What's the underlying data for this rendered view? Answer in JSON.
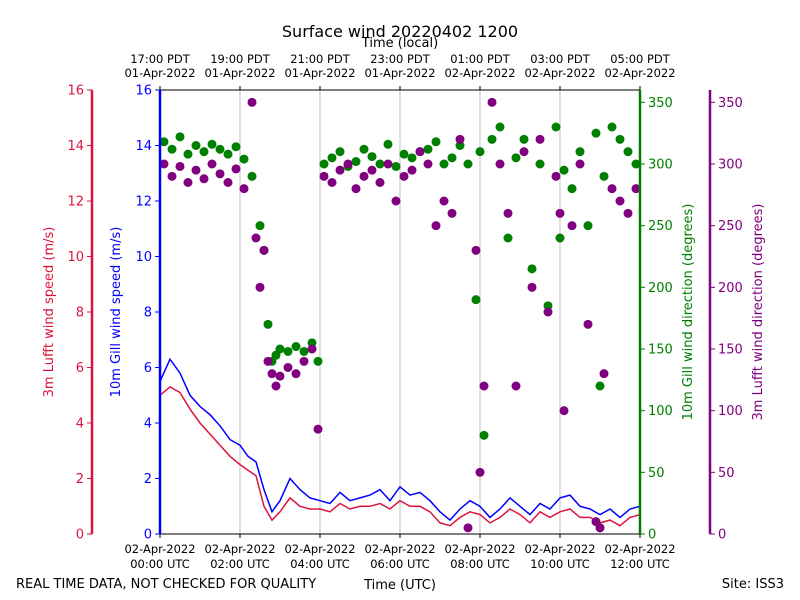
{
  "chart_data": {
    "type": "line",
    "title": "Surface wind 20220402 1200",
    "top_axis_label": "Time (local)",
    "bottom_axis_label": "Time (UTC)",
    "footer_left": "REAL TIME DATA, NOT CHECKED FOR QUALITY",
    "footer_right": "Site: ISS3",
    "xlim_hours": [
      0,
      12
    ],
    "top_ticks": [
      {
        "h": 0,
        "line1": "17:00 PDT",
        "line2": "01-Apr-2022"
      },
      {
        "h": 2,
        "line1": "19:00 PDT",
        "line2": "01-Apr-2022"
      },
      {
        "h": 4,
        "line1": "21:00 PDT",
        "line2": "01-Apr-2022"
      },
      {
        "h": 6,
        "line1": "23:00 PDT",
        "line2": "01-Apr-2022"
      },
      {
        "h": 8,
        "line1": "01:00 PDT",
        "line2": "02-Apr-2022"
      },
      {
        "h": 10,
        "line1": "03:00 PDT",
        "line2": "02-Apr-2022"
      },
      {
        "h": 12,
        "line1": "05:00 PDT",
        "line2": "02-Apr-2022"
      }
    ],
    "bottom_ticks": [
      {
        "h": 0,
        "line1": "02-Apr-2022",
        "line2": "00:00 UTC"
      },
      {
        "h": 2,
        "line1": "02-Apr-2022",
        "line2": "02:00 UTC"
      },
      {
        "h": 4,
        "line1": "02-Apr-2022",
        "line2": "04:00 UTC"
      },
      {
        "h": 6,
        "line1": "02-Apr-2022",
        "line2": "06:00 UTC"
      },
      {
        "h": 8,
        "line1": "02-Apr-2022",
        "line2": "08:00 UTC"
      },
      {
        "h": 10,
        "line1": "02-Apr-2022",
        "line2": "10:00 UTC"
      },
      {
        "h": 12,
        "line1": "02-Apr-2022",
        "line2": "12:00 UTC"
      }
    ],
    "axes": {
      "lufft_speed": {
        "label": "3m Lufft wind speed (m/s)",
        "color": "#dc143c",
        "ylim": [
          0,
          16
        ],
        "ticks": [
          0,
          2,
          4,
          6,
          8,
          10,
          12,
          14,
          16
        ]
      },
      "gill_speed": {
        "label": "10m Gill wind speed (m/s)",
        "color": "#0000ff",
        "ylim": [
          0,
          16
        ],
        "ticks": [
          0,
          2,
          4,
          6,
          8,
          10,
          12,
          14,
          16
        ]
      },
      "gill_dir": {
        "label": "10m Gill wind direction (degrees)",
        "color": "#008000",
        "ylim": [
          0,
          360
        ],
        "ticks": [
          0,
          50,
          100,
          150,
          200,
          250,
          300,
          350
        ]
      },
      "lufft_dir": {
        "label": "3m Lufft wind direction (degrees)",
        "color": "#800080",
        "ylim": [
          0,
          360
        ],
        "ticks": [
          0,
          50,
          100,
          150,
          200,
          250,
          300,
          350
        ]
      }
    },
    "series": [
      {
        "name": "10m Gill wind speed",
        "axis": "gill_speed",
        "kind": "line",
        "color": "#0000ff",
        "x": [
          0,
          0.25,
          0.5,
          0.75,
          1,
          1.25,
          1.5,
          1.75,
          2,
          2.2,
          2.4,
          2.6,
          2.8,
          3,
          3.25,
          3.5,
          3.75,
          4,
          4.25,
          4.5,
          4.75,
          5,
          5.25,
          5.5,
          5.75,
          6,
          6.25,
          6.5,
          6.75,
          7,
          7.25,
          7.5,
          7.75,
          8,
          8.25,
          8.5,
          8.75,
          9,
          9.25,
          9.5,
          9.75,
          10,
          10.25,
          10.5,
          10.75,
          11,
          11.25,
          11.5,
          11.75,
          12
        ],
        "y": [
          5.5,
          6.3,
          5.8,
          5.0,
          4.6,
          4.3,
          3.9,
          3.4,
          3.2,
          2.8,
          2.6,
          1.6,
          0.8,
          1.2,
          2.0,
          1.6,
          1.3,
          1.2,
          1.1,
          1.5,
          1.2,
          1.3,
          1.4,
          1.6,
          1.2,
          1.7,
          1.4,
          1.5,
          1.2,
          0.8,
          0.5,
          0.9,
          1.2,
          1.0,
          0.6,
          0.9,
          1.3,
          1.0,
          0.7,
          1.1,
          0.9,
          1.3,
          1.4,
          1.0,
          0.9,
          0.7,
          0.9,
          0.6,
          0.9,
          1.0
        ]
      },
      {
        "name": "3m Lufft wind speed",
        "axis": "lufft_speed",
        "kind": "line",
        "color": "#dc143c",
        "x": [
          0,
          0.25,
          0.5,
          0.75,
          1,
          1.25,
          1.5,
          1.75,
          2,
          2.2,
          2.4,
          2.6,
          2.8,
          3,
          3.25,
          3.5,
          3.75,
          4,
          4.25,
          4.5,
          4.75,
          5,
          5.25,
          5.5,
          5.75,
          6,
          6.25,
          6.5,
          6.75,
          7,
          7.25,
          7.5,
          7.75,
          8,
          8.25,
          8.5,
          8.75,
          9,
          9.25,
          9.5,
          9.75,
          10,
          10.25,
          10.5,
          10.75,
          11,
          11.25,
          11.5,
          11.75,
          12
        ],
        "y": [
          5.0,
          5.3,
          5.1,
          4.5,
          4.0,
          3.6,
          3.2,
          2.8,
          2.5,
          2.3,
          2.1,
          1.0,
          0.5,
          0.8,
          1.3,
          1.0,
          0.9,
          0.9,
          0.8,
          1.1,
          0.9,
          1.0,
          1.0,
          1.1,
          0.9,
          1.2,
          1.0,
          1.0,
          0.8,
          0.4,
          0.3,
          0.6,
          0.8,
          0.7,
          0.4,
          0.6,
          0.9,
          0.7,
          0.4,
          0.8,
          0.6,
          0.8,
          0.9,
          0.6,
          0.6,
          0.4,
          0.5,
          0.3,
          0.6,
          0.7
        ]
      },
      {
        "name": "10m Gill wind direction",
        "axis": "gill_dir",
        "kind": "scatter",
        "color": "#008000",
        "x": [
          0.1,
          0.3,
          0.5,
          0.7,
          0.9,
          1.1,
          1.3,
          1.5,
          1.7,
          1.9,
          2.1,
          2.3,
          2.5,
          2.6,
          2.7,
          2.8,
          2.9,
          3.0,
          3.2,
          3.4,
          3.6,
          3.8,
          3.95,
          4.1,
          4.3,
          4.5,
          4.7,
          4.9,
          5.1,
          5.3,
          5.5,
          5.7,
          5.9,
          6.1,
          6.3,
          6.5,
          6.7,
          6.9,
          7.1,
          7.3,
          7.5,
          7.7,
          7.9,
          8.0,
          8.1,
          8.3,
          8.5,
          8.7,
          8.9,
          9.1,
          9.3,
          9.5,
          9.7,
          9.9,
          10.0,
          10.1,
          10.3,
          10.5,
          10.7,
          10.9,
          11.0,
          11.1,
          11.3,
          11.5,
          11.7,
          11.9
        ],
        "y": [
          318,
          312,
          322,
          308,
          315,
          310,
          316,
          312,
          308,
          314,
          304,
          290,
          250,
          230,
          170,
          140,
          145,
          150,
          148,
          152,
          148,
          155,
          140,
          300,
          305,
          310,
          298,
          302,
          312,
          306,
          300,
          316,
          298,
          308,
          305,
          310,
          312,
          318,
          300,
          305,
          315,
          300,
          190,
          310,
          80,
          320,
          330,
          240,
          305,
          320,
          215,
          300,
          185,
          330,
          240,
          295,
          280,
          310,
          250,
          325,
          120,
          290,
          330,
          320,
          310,
          300
        ]
      },
      {
        "name": "3m Lufft wind direction",
        "axis": "lufft_dir",
        "kind": "scatter",
        "color": "#800080",
        "x": [
          0.1,
          0.3,
          0.5,
          0.7,
          0.9,
          1.1,
          1.3,
          1.5,
          1.7,
          1.9,
          2.1,
          2.3,
          2.4,
          2.5,
          2.6,
          2.7,
          2.8,
          2.9,
          3.0,
          3.2,
          3.4,
          3.6,
          3.8,
          3.95,
          4.1,
          4.3,
          4.5,
          4.7,
          4.9,
          5.1,
          5.3,
          5.5,
          5.7,
          5.9,
          6.1,
          6.3,
          6.5,
          6.7,
          6.9,
          7.1,
          7.3,
          7.5,
          7.7,
          7.9,
          8.0,
          8.1,
          8.3,
          8.5,
          8.7,
          8.9,
          9.1,
          9.3,
          9.5,
          9.7,
          9.9,
          10.0,
          10.1,
          10.3,
          10.5,
          10.7,
          10.9,
          11.0,
          11.1,
          11.3,
          11.5,
          11.7,
          11.9
        ],
        "y": [
          300,
          290,
          298,
          285,
          295,
          288,
          300,
          292,
          285,
          296,
          280,
          350,
          240,
          200,
          230,
          140,
          130,
          120,
          128,
          135,
          130,
          140,
          150,
          85,
          290,
          285,
          295,
          300,
          280,
          290,
          295,
          285,
          300,
          270,
          290,
          295,
          310,
          300,
          250,
          270,
          260,
          320,
          5,
          230,
          50,
          120,
          350,
          300,
          260,
          120,
          310,
          200,
          320,
          180,
          290,
          260,
          100,
          250,
          300,
          170,
          10,
          5,
          130,
          280,
          270,
          260,
          280
        ]
      }
    ]
  }
}
